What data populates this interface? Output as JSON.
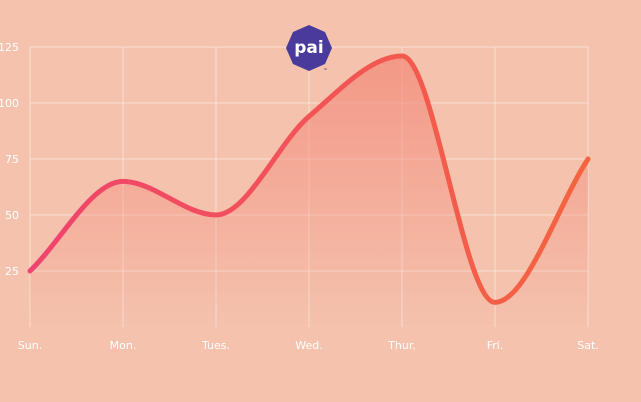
{
  "logo": {
    "text": "pai",
    "mark": "™",
    "color": "#4a3a9c"
  },
  "chart_data": {
    "type": "line",
    "categories": [
      "Sun.",
      "Mon.",
      "Tues.",
      "Wed.",
      "Thur.",
      "Fri.",
      "Sat."
    ],
    "values": [
      25,
      65,
      50,
      94,
      121,
      11,
      75
    ],
    "yticks": [
      25,
      50,
      75,
      100,
      125
    ],
    "ylim": [
      0,
      125
    ],
    "grid": true,
    "colors": {
      "line_start": "#f0436e",
      "line_end": "#f4643f",
      "fill": "#f38a7a",
      "background": "#f4c2ad"
    }
  }
}
